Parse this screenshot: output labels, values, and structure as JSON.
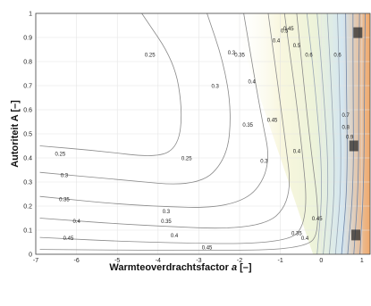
{
  "chart_data": {
    "type": "contour",
    "xlabel": "Warmteoverdrachtsfactor",
    "xlabel_symbol": "a",
    "xlabel_unit": "[–]",
    "ylabel": "Autoriteit A [–]",
    "xlim": [
      -7,
      1.2
    ],
    "ylim": [
      0,
      1
    ],
    "x_ticks": [
      "-7",
      "-6",
      "-5",
      "-4",
      "-3",
      "-2",
      "-1",
      "0",
      "1"
    ],
    "y_ticks": [
      "0",
      "0.1",
      "0.2",
      "0.3",
      "0.4",
      "0.5",
      "0.6",
      "0.7",
      "0.8",
      "0.9",
      "1"
    ],
    "grid": true,
    "contour_levels": [
      0.25,
      0.3,
      0.35,
      0.4,
      0.45,
      0.5,
      0.6,
      0.7,
      0.8,
      0.9
    ],
    "contour_labels": [
      {
        "text": "0.25",
        "x": -4.2,
        "y": 0.82
      },
      {
        "text": "0.25",
        "x": -3.3,
        "y": 0.39
      },
      {
        "text": "0.25",
        "x": -6.4,
        "y": 0.41
      },
      {
        "text": "0.3",
        "x": -2.2,
        "y": 0.83
      },
      {
        "text": "0.3",
        "x": -2.6,
        "y": 0.69
      },
      {
        "text": "0.3",
        "x": -1.4,
        "y": 0.38
      },
      {
        "text": "0.3",
        "x": -6.3,
        "y": 0.32
      },
      {
        "text": "0.3",
        "x": -3.8,
        "y": 0.17
      },
      {
        "text": "0.35",
        "x": -6.3,
        "y": 0.22
      },
      {
        "text": "0.35",
        "x": -3.8,
        "y": 0.13
      },
      {
        "text": "0.35",
        "x": -1.8,
        "y": 0.53
      },
      {
        "text": "0.35",
        "x": -2.0,
        "y": 0.82
      },
      {
        "text": "0.35",
        "x": -0.6,
        "y": 0.08
      },
      {
        "text": "0.4",
        "x": -6.0,
        "y": 0.13
      },
      {
        "text": "0.4",
        "x": -3.6,
        "y": 0.07
      },
      {
        "text": "0.4",
        "x": -1.1,
        "y": 0.88
      },
      {
        "text": "0.4",
        "x": -1.7,
        "y": 0.71
      },
      {
        "text": "0.4",
        "x": -0.6,
        "y": 0.42
      },
      {
        "text": "0.4",
        "x": -0.4,
        "y": 0.06
      },
      {
        "text": "0.45",
        "x": -0.8,
        "y": 0.93
      },
      {
        "text": "0.45",
        "x": -1.2,
        "y": 0.55
      },
      {
        "text": "0.45",
        "x": -0.1,
        "y": 0.14
      },
      {
        "text": "0.45",
        "x": -2.8,
        "y": 0.02
      },
      {
        "text": "0.45",
        "x": -6.2,
        "y": 0.06
      },
      {
        "text": "0.5",
        "x": -0.6,
        "y": 0.86
      },
      {
        "text": "0.5",
        "x": -0.9,
        "y": 0.92
      },
      {
        "text": "0.6",
        "x": -0.3,
        "y": 0.82
      },
      {
        "text": "0.6",
        "x": 0.4,
        "y": 0.82
      },
      {
        "text": "0.7",
        "x": 0.6,
        "y": 0.57
      },
      {
        "text": "0.8",
        "x": 0.6,
        "y": 0.52
      },
      {
        "text": "0.9",
        "x": 0.7,
        "y": 0.48
      }
    ]
  }
}
